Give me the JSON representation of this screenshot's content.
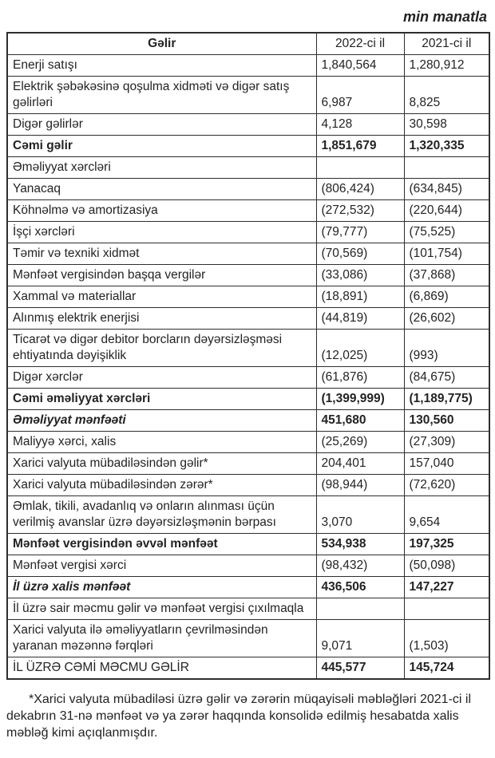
{
  "page": {
    "unit_label": "min manatla"
  },
  "table": {
    "headers": [
      "Gəlir",
      "2022-ci il",
      "2021-ci il"
    ],
    "rows": [
      {
        "label": "Enerji satışı",
        "v2022": "1,840,564",
        "v2021": "1,280,912",
        "style": ""
      },
      {
        "label": "Elektrik şəbəkəsinə qoşulma xidməti və digər satış gəlirləri",
        "v2022": "6,987",
        "v2021": "8,825",
        "style": ""
      },
      {
        "label": "Digər gəlirlər",
        "v2022": "4,128",
        "v2021": "30,598",
        "style": ""
      },
      {
        "label": "Cəmi gəlir",
        "v2022": "1,851,679",
        "v2021": "1,320,335",
        "style": "bold"
      },
      {
        "label": "Əməliyyat xərcləri",
        "v2022": "",
        "v2021": "",
        "style": ""
      },
      {
        "label": "Yanacaq",
        "v2022": "(806,424)",
        "v2021": "(634,845)",
        "style": ""
      },
      {
        "label": "Köhnəlmə və amortizasiya",
        "v2022": "(272,532)",
        "v2021": "(220,644)",
        "style": ""
      },
      {
        "label": "İşçi xərcləri",
        "v2022": "(79,777)",
        "v2021": "(75,525)",
        "style": ""
      },
      {
        "label": "Təmir və texniki xidmət",
        "v2022": "(70,569)",
        "v2021": "(101,754)",
        "style": ""
      },
      {
        "label": "Mənfəət vergisindən başqa vergilər",
        "v2022": "(33,086)",
        "v2021": "(37,868)",
        "style": ""
      },
      {
        "label": "Xammal və materiallar",
        "v2022": "(18,891)",
        "v2021": "(6,869)",
        "style": ""
      },
      {
        "label": "Alınmış elektrik enerjisi",
        "v2022": "(44,819)",
        "v2021": "(26,602)",
        "style": ""
      },
      {
        "label": "Ticarət və digər debitor borcların dəyərsizləşməsi ehtiyatında dəyişiklik",
        "v2022": "(12,025)",
        "v2021": "(993)",
        "style": ""
      },
      {
        "label": "Digər xərclər",
        "v2022": "(61,876)",
        "v2021": "(84,675)",
        "style": ""
      },
      {
        "label": "Cəmi əməliyyat xərcləri",
        "v2022": "(1,399,999)",
        "v2021": "(1,189,775)",
        "style": "bold"
      },
      {
        "label": "Əməliyyat mənfəəti",
        "v2022": "451,680",
        "v2021": "130,560",
        "style": "bold-italic"
      },
      {
        "label": "Maliyyə xərci, xalis",
        "v2022": "(25,269)",
        "v2021": "(27,309)",
        "style": ""
      },
      {
        "label": "Xarici valyuta mübadiləsindən gəlir*",
        "v2022": "204,401",
        "v2021": "157,040",
        "style": ""
      },
      {
        "label": "Xarici valyuta mübadiləsindən zərər*",
        "v2022": "(98,944)",
        "v2021": "(72,620)",
        "style": ""
      },
      {
        "label": "Əmlak, tikili, avadanlıq və onların alınması üçün verilmiş avanslar üzrə dəyərsizləşmənin bərpası",
        "v2022": "3,070",
        "v2021": "9,654",
        "style": ""
      },
      {
        "label": "Mənfəət vergisindən əvvəl mənfəət",
        "v2022": "534,938",
        "v2021": "197,325",
        "style": "bold"
      },
      {
        "label": "Mənfəət vergisi xərci",
        "v2022": "(98,432)",
        "v2021": "(50,098)",
        "style": ""
      },
      {
        "label": "İl üzrə xalis mənfəət",
        "v2022": "436,506",
        "v2021": "147,227",
        "style": "bold-italic"
      },
      {
        "label": "İl üzrə sair məcmu gəlir və mənfəət vergisi çıxılmaqla",
        "v2022": "",
        "v2021": "",
        "style": ""
      },
      {
        "label": "Xarici valyuta ilə əməliyyatların çevrilməsindən yaranan məzənnə fərqləri",
        "v2022": "9,071",
        "v2021": "(1,503)",
        "style": ""
      },
      {
        "label": "İL ÜZRƏ CƏMİ MƏCMU GƏLİR",
        "v2022": "445,577",
        "v2021": "145,724",
        "style": "total-caps"
      }
    ]
  },
  "footnote": "*Xarici valyuta mübadiləsi üzrə gəlir və zərərin müqayisəli məbləğləri 2021-ci il dekabrın 31-nə mənfəət və ya zərər haqqında konsolidə edilmiş hesabatda xalis məbləğ kimi açıqlanmışdır."
}
